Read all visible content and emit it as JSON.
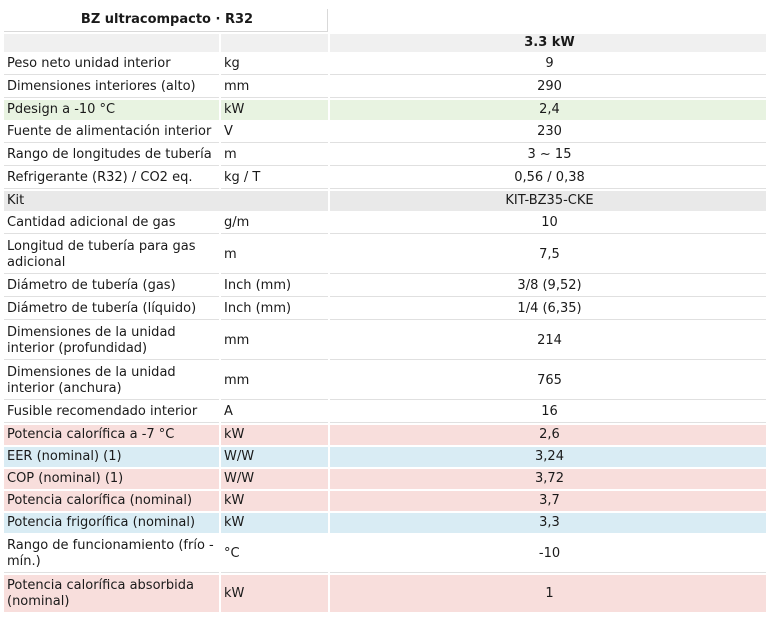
{
  "header": {
    "title": "BZ ultracompacto · R32",
    "model_column": "3.3 kW"
  },
  "rows": [
    {
      "param": "Peso neto unidad interior",
      "unit": "kg",
      "value": "9",
      "tone": "white"
    },
    {
      "param": "Dimensiones interiores (alto)",
      "unit": "mm",
      "value": "290",
      "tone": "white"
    },
    {
      "param": "Pdesign a -10 °C",
      "unit": "kW",
      "value": "2,4",
      "tone": "green"
    },
    {
      "param": "Fuente de alimentación interior",
      "unit": "V",
      "value": "230",
      "tone": "white"
    },
    {
      "param": "Rango de longitudes de tubería",
      "unit": "m",
      "value": "3 ~ 15",
      "tone": "white"
    },
    {
      "param": "Refrigerante (R32) / CO2 eq.",
      "unit": "kg / T",
      "value": "0,56 / 0,38",
      "tone": "white"
    },
    {
      "param": "Kit",
      "unit": "",
      "value": "KIT-BZ35-CKE",
      "tone": "grey"
    },
    {
      "param": "Cantidad adicional de gas",
      "unit": "g/m",
      "value": "10",
      "tone": "white"
    },
    {
      "param": "Longitud de tubería para gas adicional",
      "unit": "m",
      "value": "7,5",
      "tone": "white"
    },
    {
      "param": "Diámetro de tubería (gas)",
      "unit": "Inch (mm)",
      "value": "3/8 (9,52)",
      "tone": "white"
    },
    {
      "param": "Diámetro de tubería (líquido)",
      "unit": "Inch (mm)",
      "value": "1/4 (6,35)",
      "tone": "white"
    },
    {
      "param": "Dimensiones de la unidad interior (profundidad)",
      "unit": "mm",
      "value": "214",
      "tone": "white"
    },
    {
      "param": "Dimensiones de la unidad interior (anchura)",
      "unit": "mm",
      "value": "765",
      "tone": "white"
    },
    {
      "param": "Fusible recomendado interior",
      "unit": "A",
      "value": "16",
      "tone": "white"
    },
    {
      "param": "Potencia calorífica a -7 °C",
      "unit": "kW",
      "value": "2,6",
      "tone": "red"
    },
    {
      "param": "EER (nominal) (1)",
      "unit": "W/W",
      "value": "3,24",
      "tone": "blue"
    },
    {
      "param": "COP (nominal) (1)",
      "unit": "W/W",
      "value": "3,72",
      "tone": "red"
    },
    {
      "param": "Potencia calorífica (nominal)",
      "unit": "kW",
      "value": "3,7",
      "tone": "red"
    },
    {
      "param": "Potencia frigorífica (nominal)",
      "unit": "kW",
      "value": "3,3",
      "tone": "blue"
    },
    {
      "param": "Rango de funcionamiento (frío - mín.)",
      "unit": "°C",
      "value": "-10",
      "tone": "white"
    },
    {
      "param": "Potencia calorífica absorbida (nominal)",
      "unit": "kW",
      "value": "1",
      "tone": "red"
    }
  ],
  "colors": {
    "green": "#e8f3e1",
    "red": "#f8dedc",
    "blue": "#d9ecf4",
    "grey": "#e9e9e9",
    "band": "#f0f0f0"
  }
}
